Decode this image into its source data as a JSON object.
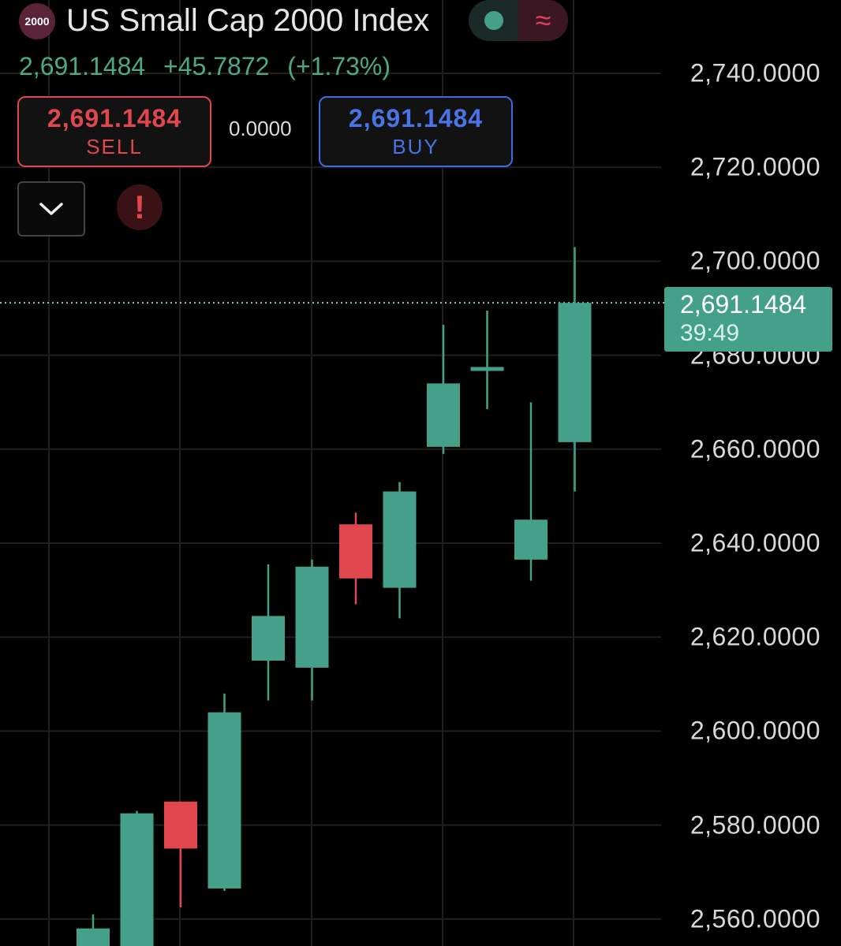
{
  "header": {
    "logo_text": "2000",
    "title": "US Small Cap 2000 Index",
    "price": "2,691.1484",
    "change": "+45.7872",
    "change_pct": "(+1.73%)"
  },
  "trade": {
    "sell_price": "2,691.1484",
    "sell_label": "SELL",
    "spread": "0.0000",
    "buy_price": "2,691.1484",
    "buy_label": "BUY"
  },
  "controls": {
    "dropdown_icon": "chevron-down-icon",
    "alert_icon": "exclamation-icon",
    "alert_glyph": "!",
    "mode_icons": [
      "dot-icon",
      "wave-icon"
    ],
    "wave_glyph": "≈"
  },
  "colors": {
    "up": "#45a08a",
    "down": "#e0474f",
    "buy": "#4a73e6",
    "grid": "#1f1f1f"
  },
  "last_price": {
    "price": "2,691.1484",
    "countdown": "39:49"
  },
  "chart_data": {
    "type": "candlestick",
    "y_ticks": [
      "2,740.0000",
      "2,720.0000",
      "2,700.0000",
      "2,680.0000",
      "2,660.0000",
      "2,640.0000",
      "2,620.0000",
      "2,600.0000",
      "2,580.0000",
      "2,560.0000"
    ],
    "ylim": [
      2555,
      2745
    ],
    "last_price": 2691.1484,
    "candles": [
      {
        "open": 2552.0,
        "high": 2561.0,
        "low": 2550.0,
        "close": 2558.0
      },
      {
        "open": 2553.0,
        "high": 2583.0,
        "low": 2553.0,
        "close": 2582.5
      },
      {
        "open": 2585.0,
        "high": 2585.0,
        "low": 2562.5,
        "close": 2575.0
      },
      {
        "open": 2566.5,
        "high": 2608.0,
        "low": 2566.0,
        "close": 2604.0
      },
      {
        "open": 2615.0,
        "high": 2635.5,
        "low": 2606.5,
        "close": 2624.5
      },
      {
        "open": 2613.5,
        "high": 2636.5,
        "low": 2606.5,
        "close": 2635.0
      },
      {
        "open": 2644.0,
        "high": 2646.5,
        "low": 2627.0,
        "close": 2632.5
      },
      {
        "open": 2630.5,
        "high": 2653.0,
        "low": 2624.0,
        "close": 2651.0
      },
      {
        "open": 2660.5,
        "high": 2686.5,
        "low": 2659.0,
        "close": 2674.0
      },
      {
        "open": 2677.0,
        "high": 2689.5,
        "low": 2668.5,
        "close": 2677.5
      },
      {
        "open": 2636.5,
        "high": 2670.0,
        "low": 2632.0,
        "close": 2645.0
      },
      {
        "open": 2661.5,
        "high": 2703.0,
        "low": 2651.0,
        "close": 2691.1484
      }
    ]
  }
}
